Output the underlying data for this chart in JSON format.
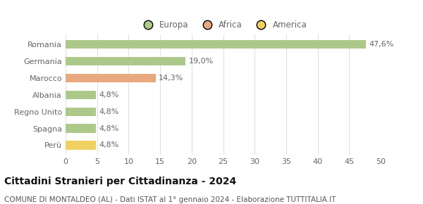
{
  "categories": [
    "Romania",
    "Germania",
    "Marocco",
    "Albania",
    "Regno Unito",
    "Spagna",
    "Perù"
  ],
  "values": [
    47.6,
    19.0,
    14.3,
    4.8,
    4.8,
    4.8,
    4.8
  ],
  "labels": [
    "47,6%",
    "19,0%",
    "14,3%",
    "4,8%",
    "4,8%",
    "4,8%",
    "4,8%"
  ],
  "colors": [
    "#adc98a",
    "#adc98a",
    "#e8a97e",
    "#adc98a",
    "#adc98a",
    "#adc98a",
    "#f0d060"
  ],
  "legend": [
    {
      "label": "Europa",
      "color": "#adc98a"
    },
    {
      "label": "Africa",
      "color": "#e8a97e"
    },
    {
      "label": "America",
      "color": "#f0d060"
    }
  ],
  "xlim": [
    0,
    50
  ],
  "xticks": [
    0,
    5,
    10,
    15,
    20,
    25,
    30,
    35,
    40,
    45,
    50
  ],
  "title": "Cittadini Stranieri per Cittadinanza - 2024",
  "subtitle": "COMUNE DI MONTALDEO (AL) - Dati ISTAT al 1° gennaio 2024 - Elaborazione TUTTITALIA.IT",
  "bg_color": "#ffffff",
  "grid_color": "#e0e0e0",
  "bar_height": 0.52,
  "title_fontsize": 10,
  "subtitle_fontsize": 7.5,
  "label_fontsize": 8,
  "tick_fontsize": 8,
  "legend_fontsize": 8.5,
  "label_color": "#666666",
  "title_color": "#111111",
  "subtitle_color": "#555555"
}
